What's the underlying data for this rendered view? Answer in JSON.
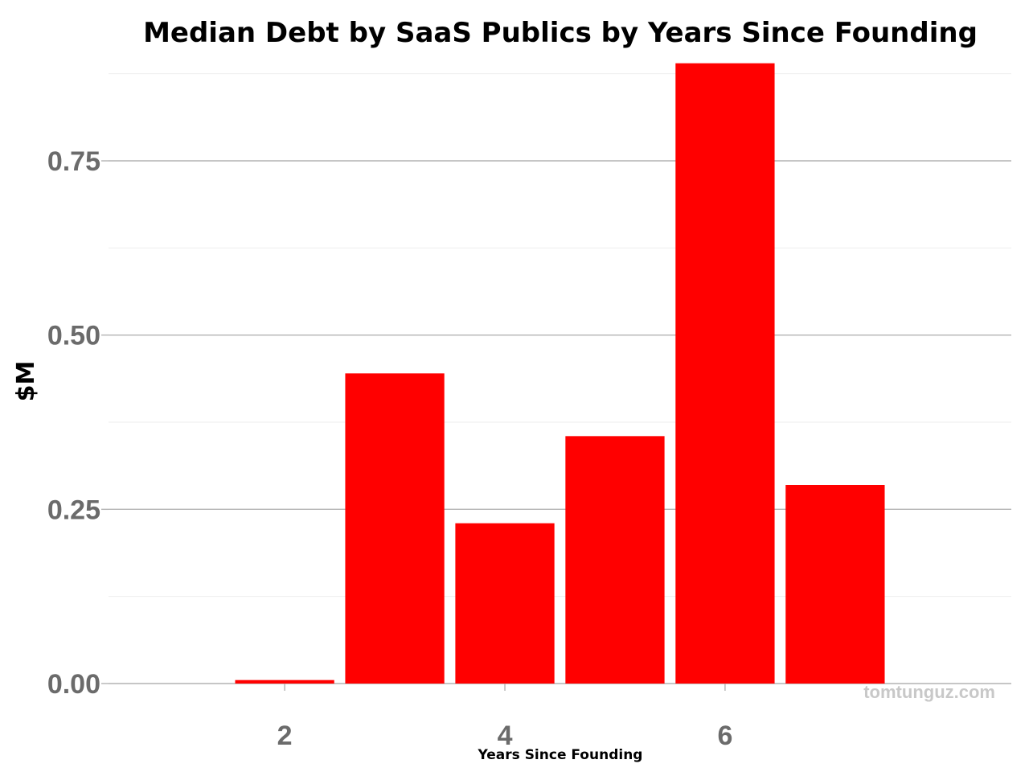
{
  "chart_data": {
    "type": "bar",
    "title": "Median Debt by SaaS Publics by Years Since Founding",
    "xlabel": "Years Since Founding",
    "ylabel": "$M",
    "x": [
      2,
      3,
      4,
      5,
      6,
      7
    ],
    "values": [
      0.005,
      0.445,
      0.23,
      0.355,
      0.89,
      0.285
    ],
    "xlim": [
      0.4,
      8.6
    ],
    "ylim": [
      0,
      0.9
    ],
    "x_ticks": [
      2,
      4,
      6
    ],
    "x_tick_labels": [
      "2",
      "4",
      "6"
    ],
    "y_ticks": [
      0,
      0.25,
      0.5,
      0.75
    ],
    "y_tick_labels": [
      "0.00",
      "0.25",
      "0.50",
      "0.75"
    ],
    "grid": true,
    "legend": "none",
    "bar_color": "#ff0000",
    "watermark": "tomtunguz.com"
  }
}
